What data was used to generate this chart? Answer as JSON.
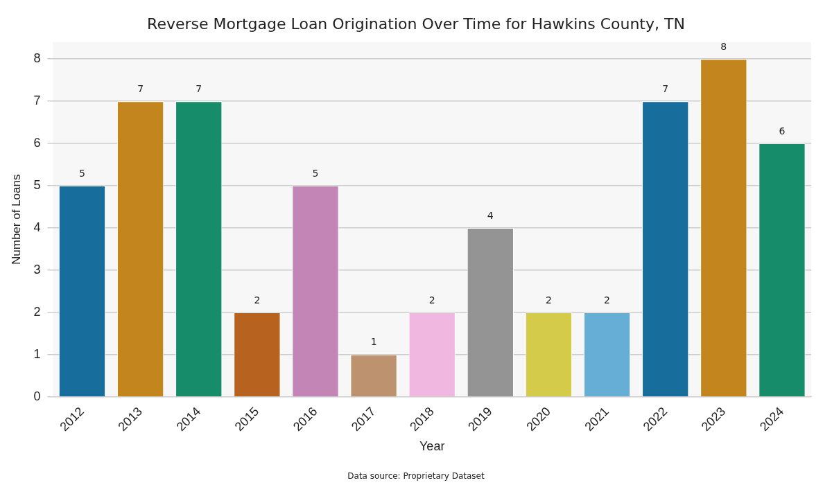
{
  "chart_data": {
    "type": "bar",
    "title": "Reverse Mortgage Loan Origination Over Time for Hawkins County, TN",
    "xlabel": "Year",
    "ylabel": "Number of Loans",
    "categories": [
      "2012",
      "2013",
      "2014",
      "2015",
      "2016",
      "2017",
      "2018",
      "2019",
      "2020",
      "2021",
      "2022",
      "2023",
      "2024"
    ],
    "values": [
      5,
      7,
      7,
      2,
      5,
      1,
      2,
      4,
      2,
      2,
      7,
      8,
      6
    ],
    "colors": [
      "#176d9c",
      "#c3861f",
      "#168c6a",
      "#b8621f",
      "#c384b6",
      "#bd926e",
      "#f0b8e0",
      "#949494",
      "#d5cb4a",
      "#67aed7",
      "#176d9c",
      "#c3861f",
      "#168c6a"
    ],
    "ylim": [
      0,
      8.4
    ],
    "yticks": [
      0,
      1,
      2,
      3,
      4,
      5,
      6,
      7,
      8
    ],
    "grid": "y",
    "data_labels": true,
    "legend": false,
    "annotations": [
      "Data source: Proprietary Dataset"
    ]
  }
}
